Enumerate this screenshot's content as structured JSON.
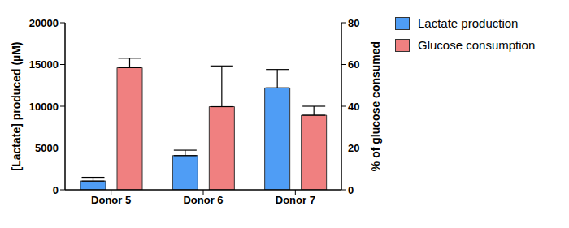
{
  "chart_data": {
    "type": "bar",
    "categories": [
      "Donor 5",
      "Donor 6",
      "Donor 7"
    ],
    "series": [
      {
        "name": "Lactate production",
        "color": "#4f9df5",
        "values": [
          1050,
          4100,
          12200
        ],
        "errors": [
          450,
          650,
          2200
        ]
      },
      {
        "name": "Glucose consumption",
        "color": "#f08080",
        "axis": "y2",
        "values": [
          58.5,
          39.8,
          35.7
        ],
        "errors": [
          4.5,
          19.5,
          4.3
        ]
      }
    ],
    "ylabel": "[Lactate] produced (µM)",
    "y2label": "% of glucose consumed",
    "ylim": [
      0,
      20000
    ],
    "yticks": [
      0,
      5000,
      10000,
      15000,
      20000
    ],
    "y2lim": [
      0,
      80
    ],
    "y2ticks": [
      0,
      20,
      40,
      60,
      80
    ],
    "legend": "top right",
    "grid": false
  }
}
